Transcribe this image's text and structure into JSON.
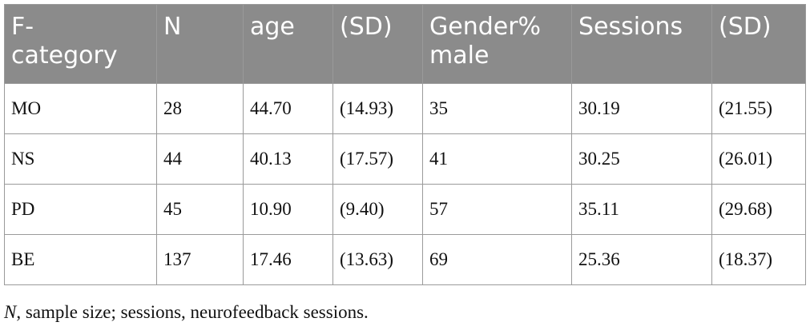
{
  "table": {
    "header": [
      "F-category",
      "N",
      "age",
      "(SD)",
      "Gender% male",
      "Sessions",
      "(SD)"
    ],
    "rows": [
      [
        "MO",
        "28",
        "44.70",
        "(14.93)",
        "35",
        "30.19",
        "(21.55)"
      ],
      [
        "NS",
        "44",
        "40.13",
        "(17.57)",
        "41",
        "30.25",
        "(26.01)"
      ],
      [
        "PD",
        "45",
        "10.90",
        "(9.40)",
        "57",
        "35.11",
        "(29.68)"
      ],
      [
        "BE",
        "137",
        "17.46",
        "(13.63)",
        "69",
        "25.36",
        "(18.37)"
      ]
    ]
  },
  "note": {
    "term": "N",
    "text": ", sample size; sessions, neurofeedback sessions."
  }
}
